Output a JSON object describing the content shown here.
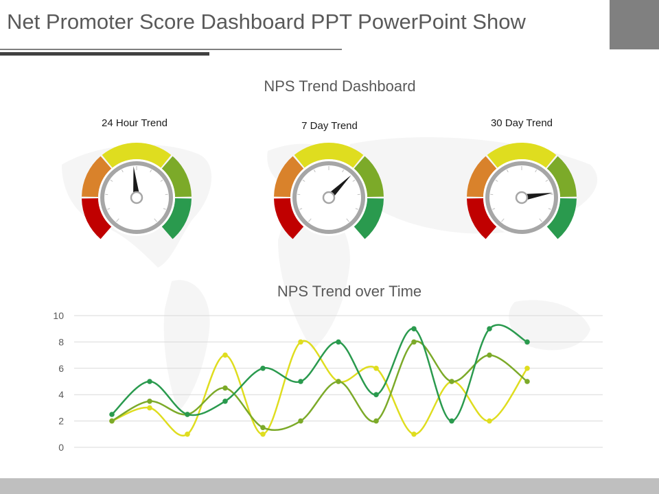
{
  "slide": {
    "title": "Net Promoter Score Dashboard PPT PowerPoint Show"
  },
  "colors": {
    "red": "#c00000",
    "orange": "#d9822b",
    "yellow": "#dfdd1f",
    "lime": "#7caa29",
    "green": "#2a9a4e",
    "dial_ring": "#a6a6a6",
    "needle": "#1a1a1a"
  },
  "chart_data": [
    {
      "type": "gauge",
      "title": "NPS Trend Dashboard",
      "gauges": [
        {
          "label": "24 Hour Trend",
          "needle_fraction": 0.48
        },
        {
          "label": "7 Day Trend",
          "needle_fraction": 0.66
        },
        {
          "label": "30 Day Trend",
          "needle_fraction": 0.79
        }
      ]
    },
    {
      "type": "line",
      "title": "NPS Trend over Time",
      "x": [
        1,
        2,
        3,
        4,
        5,
        6,
        7,
        8,
        9,
        10,
        11,
        12
      ],
      "ylim": [
        0,
        10
      ],
      "yticks": [
        "0",
        "2",
        "4",
        "6",
        "8",
        "10"
      ],
      "grid": true,
      "series": [
        {
          "color": "#2a9a4e",
          "values": [
            2.5,
            5,
            2.5,
            3.5,
            6,
            5,
            8,
            4,
            9,
            2,
            9,
            8
          ]
        },
        {
          "color": "#7caa29",
          "values": [
            2,
            3.5,
            2.5,
            4.5,
            1.5,
            2,
            5,
            2,
            8,
            5,
            7,
            5
          ]
        },
        {
          "color": "#dfdd1f",
          "values": [
            2,
            3,
            1,
            7,
            1,
            8,
            5,
            6,
            1,
            5,
            2,
            6
          ]
        }
      ]
    }
  ]
}
